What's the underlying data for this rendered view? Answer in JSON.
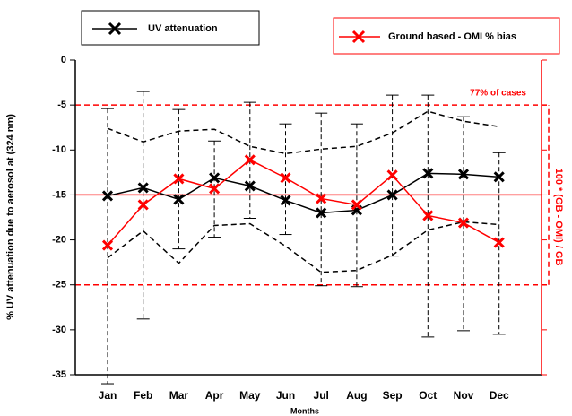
{
  "chart_data": {
    "type": "line",
    "x_label": "Months",
    "y_label": "% UV attenuation due to aerosol at (324 nm)",
    "y2_label": "100 * (GB - OMI) / GB",
    "annotation": "77% of cases",
    "categories": [
      "Jan",
      "Feb",
      "Mar",
      "Apr",
      "May",
      "Jun",
      "Jul",
      "Aug",
      "Sep",
      "Oct",
      "Nov",
      "Dec"
    ],
    "ylim": [
      -35,
      0
    ],
    "yticks": [
      0,
      -5,
      -10,
      -15,
      -20,
      -25,
      -30,
      -35
    ],
    "reference_line": -15,
    "reference_band": [
      -25,
      -5
    ],
    "reference_color": "#ff0000",
    "series": [
      {
        "name": "UV attenuation",
        "color": "#000000",
        "values": [
          -15.1,
          -14.2,
          -15.5,
          -13.1,
          -14.0,
          -15.6,
          -17.0,
          -16.7,
          -15.0,
          -12.6,
          -12.7,
          -13.0
        ],
        "high": [
          -5.4,
          -3.5,
          -5.5,
          -9.0,
          -4.7,
          -7.1,
          -5.9,
          -7.1,
          -3.9,
          -3.9,
          -6.3,
          -10.3
        ],
        "low": [
          -36.0,
          -28.8,
          -21.0,
          -19.7,
          -17.6,
          -19.4,
          -25.1,
          -25.2,
          -21.8,
          -30.8,
          -30.1,
          -30.5
        ],
        "upper_envelope": [
          -7.6,
          -9.1,
          -7.9,
          -7.7,
          -9.6,
          -10.4,
          -9.9,
          -9.6,
          -8.1,
          -5.7,
          -6.8,
          -7.4
        ],
        "lower_envelope": [
          -22.0,
          -19.0,
          -22.6,
          -18.4,
          -18.2,
          -20.7,
          -23.6,
          -23.4,
          -21.7,
          -18.9,
          -18.0,
          -18.3
        ]
      },
      {
        "name": "Ground based - OMI % bias",
        "color": "#ff0000",
        "values": [
          -20.6,
          -16.1,
          -13.2,
          -14.3,
          -11.1,
          -13.1,
          -15.4,
          -16.1,
          -12.8,
          -17.3,
          -18.1,
          -20.3
        ]
      }
    ]
  }
}
